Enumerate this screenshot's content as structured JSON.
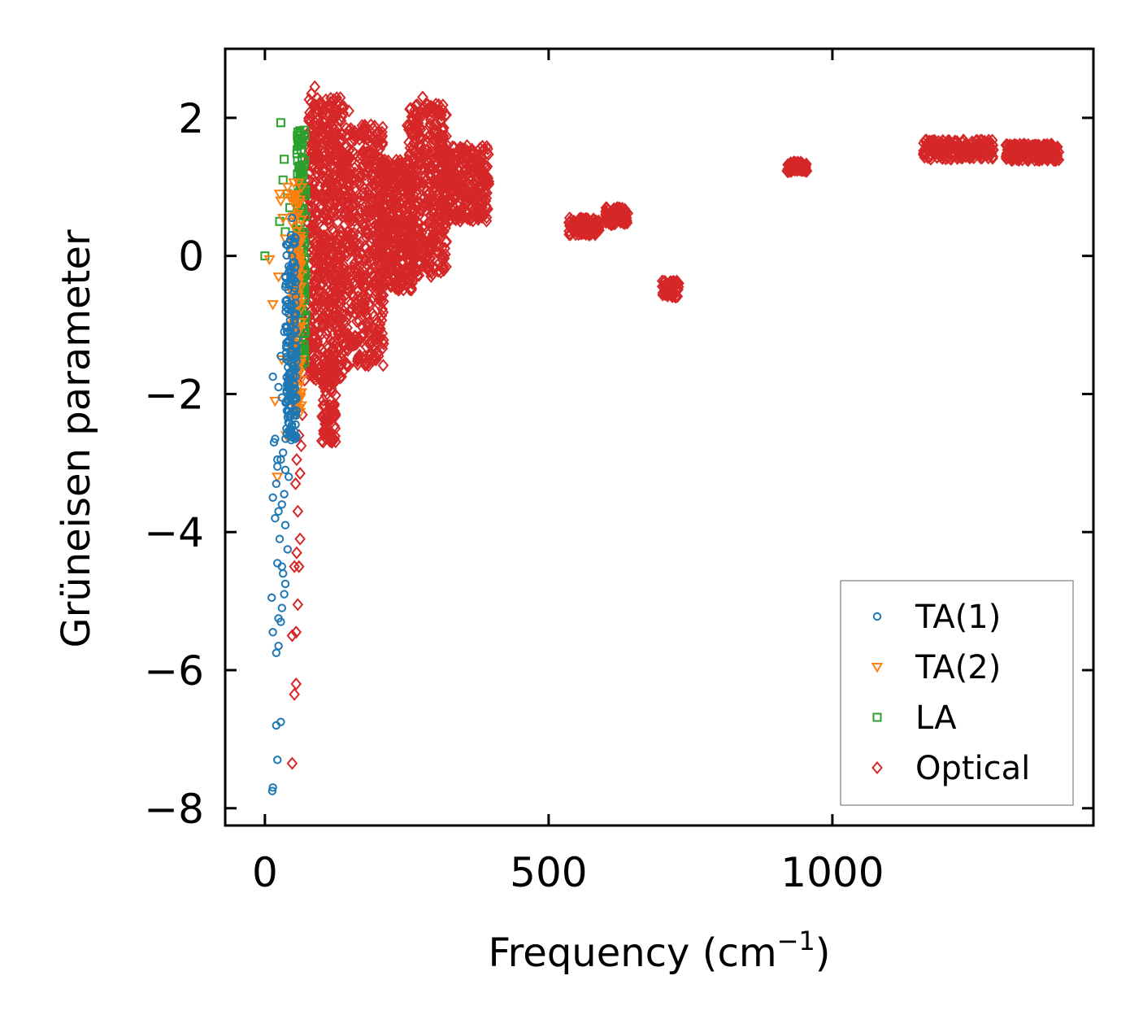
{
  "chart_data": {
    "type": "scatter",
    "title": "",
    "xlabel": "Frequency (cm",
    "xlabel_sup": "−1",
    "xlabel_suffix": ")",
    "ylabel": "Grüneisen parameter",
    "xlim": [
      -70,
      1460
    ],
    "ylim": [
      -8.25,
      3.0
    ],
    "xticks": [
      0,
      500,
      1000
    ],
    "xtick_labels": [
      "0",
      "500",
      "1000"
    ],
    "yticks": [
      2,
      0,
      -2,
      -4,
      -6,
      -8
    ],
    "ytick_labels": [
      "2",
      "0",
      "−2",
      "−4",
      "−6",
      "−8"
    ],
    "legend_position": "lower-right",
    "grid": false,
    "series": [
      {
        "name": "TA(1)",
        "marker": "circle",
        "color": "#1f77b4",
        "points": [
          [
            13,
            -7.75
          ],
          [
            14,
            -7.7
          ],
          [
            22,
            -7.3
          ],
          [
            20,
            -6.8
          ],
          [
            28,
            -6.75
          ],
          [
            14,
            -5.45
          ],
          [
            24,
            -5.65
          ],
          [
            20,
            -5.75
          ],
          [
            12,
            -4.95
          ],
          [
            28,
            -5.3
          ],
          [
            24,
            -5.25
          ],
          [
            30,
            -5.1
          ],
          [
            34,
            -4.9
          ],
          [
            36,
            -4.75
          ],
          [
            32,
            -4.6
          ],
          [
            22,
            -4.45
          ],
          [
            30,
            -4.5
          ],
          [
            14,
            -3.5
          ],
          [
            18,
            -3.8
          ],
          [
            24,
            -3.7
          ],
          [
            30,
            -3.6
          ],
          [
            36,
            -3.9
          ],
          [
            40,
            -4.25
          ],
          [
            34,
            -3.45
          ],
          [
            22,
            -3.05
          ],
          [
            28,
            -2.95
          ],
          [
            36,
            -3.1
          ],
          [
            18,
            -2.65
          ],
          [
            14,
            -1.75
          ],
          [
            24,
            -1.9
          ],
          [
            30,
            -2.05
          ],
          [
            38,
            -2.5
          ],
          [
            22,
            -2.95
          ],
          [
            32,
            -2.85
          ],
          [
            42,
            -2.25
          ],
          [
            28,
            -1.45
          ],
          [
            34,
            -1.1
          ],
          [
            40,
            -0.7
          ],
          [
            36,
            -0.45
          ],
          [
            42,
            -0.15
          ],
          [
            44,
            0.1
          ],
          [
            46,
            0.3
          ],
          [
            48,
            0.55
          ],
          [
            38,
            -1.3
          ],
          [
            50,
            -2.0
          ],
          [
            52,
            -2.6
          ],
          [
            42,
            -3.2
          ],
          [
            26,
            -4.1
          ],
          [
            20,
            -3.3
          ],
          [
            16,
            -2.7
          ]
        ],
        "band": {
          "x_center": 46,
          "x_spread": 10,
          "y_min": -2.7,
          "y_max": 0.3,
          "count": 180
        }
      },
      {
        "name": "TA(2)",
        "marker": "triangle-down",
        "color": "#ff7f0e",
        "points": [
          [
            22,
            -3.2
          ],
          [
            18,
            -2.1
          ],
          [
            14,
            -0.7
          ],
          [
            8,
            -0.05
          ],
          [
            26,
            0.9
          ],
          [
            28,
            0.8
          ],
          [
            32,
            0.55
          ],
          [
            36,
            0.25
          ],
          [
            40,
            1.0
          ],
          [
            44,
            0.85
          ],
          [
            30,
            -1.5
          ],
          [
            24,
            -0.3
          ],
          [
            38,
            -2.6
          ],
          [
            42,
            -1.9
          ]
        ],
        "band": {
          "x_center": 56,
          "x_spread": 9,
          "y_min": -2.3,
          "y_max": 1.1,
          "count": 140
        }
      },
      {
        "name": "LA",
        "marker": "square",
        "color": "#2ca02c",
        "points": [
          [
            0,
            0.0
          ],
          [
            28,
            1.93
          ],
          [
            34,
            1.4
          ],
          [
            32,
            1.1
          ],
          [
            40,
            0.9
          ],
          [
            26,
            0.5
          ],
          [
            44,
            0.7
          ],
          [
            36,
            0.35
          ],
          [
            46,
            -0.4
          ],
          [
            50,
            -1.1
          ]
        ],
        "band": {
          "x_center": 64,
          "x_spread": 8,
          "y_min": -1.6,
          "y_max": 1.85,
          "count": 160
        }
      },
      {
        "name": "Optical",
        "marker": "diamond",
        "color": "#d62728",
        "points": [
          [
            48,
            -7.35
          ],
          [
            52,
            -6.35
          ],
          [
            55,
            -6.2
          ],
          [
            48,
            -5.5
          ],
          [
            55,
            -5.45
          ],
          [
            58,
            -5.05
          ],
          [
            52,
            -4.5
          ],
          [
            60,
            -4.5
          ],
          [
            56,
            -4.3
          ],
          [
            62,
            -4.1
          ],
          [
            58,
            -3.7
          ],
          [
            54,
            -3.3
          ],
          [
            62,
            -3.15
          ],
          [
            56,
            -2.95
          ],
          [
            64,
            -2.75
          ],
          [
            60,
            -2.6
          ],
          [
            66,
            -2.3
          ],
          [
            70,
            -1.8
          ],
          [
            72,
            -1.2
          ],
          [
            88,
            2.45
          ],
          [
            82,
            2.35
          ],
          [
            96,
            2.2
          ],
          [
            278,
            2.3
          ],
          [
            148,
            2.1
          ],
          [
            118,
            -2.7
          ],
          [
            124,
            -2.5
          ],
          [
            232,
            -0.4
          ],
          [
            262,
            -0.35
          ],
          [
            380,
            1.35
          ]
        ],
        "clusters": [
          {
            "x": [
              75,
              140
            ],
            "y": [
              -1.8,
              2.3
            ],
            "count": 700
          },
          {
            "x": [
              100,
              125
            ],
            "y": [
              -2.7,
              -1.5
            ],
            "count": 100
          },
          {
            "x": [
              140,
              210
            ],
            "y": [
              -1.6,
              1.9
            ],
            "count": 500
          },
          {
            "x": [
              200,
              260
            ],
            "y": [
              -0.5,
              1.4
            ],
            "count": 350
          },
          {
            "x": [
              250,
              320
            ],
            "y": [
              -0.3,
              2.2
            ],
            "count": 450
          },
          {
            "x": [
              310,
              395
            ],
            "y": [
              0.5,
              1.6
            ],
            "count": 300
          },
          {
            "x": [
              535,
              590
            ],
            "y": [
              0.3,
              0.55
            ],
            "count": 100
          },
          {
            "x": [
              600,
              640
            ],
            "y": [
              0.45,
              0.7
            ],
            "count": 80
          },
          {
            "x": [
              700,
              730
            ],
            "y": [
              -0.6,
              -0.35
            ],
            "count": 60
          },
          {
            "x": [
              920,
              955
            ],
            "y": [
              1.22,
              1.36
            ],
            "count": 60
          },
          {
            "x": [
              1160,
              1285
            ],
            "y": [
              1.4,
              1.68
            ],
            "count": 220
          },
          {
            "x": [
              1305,
              1400
            ],
            "y": [
              1.38,
              1.62
            ],
            "count": 180
          }
        ]
      }
    ]
  }
}
